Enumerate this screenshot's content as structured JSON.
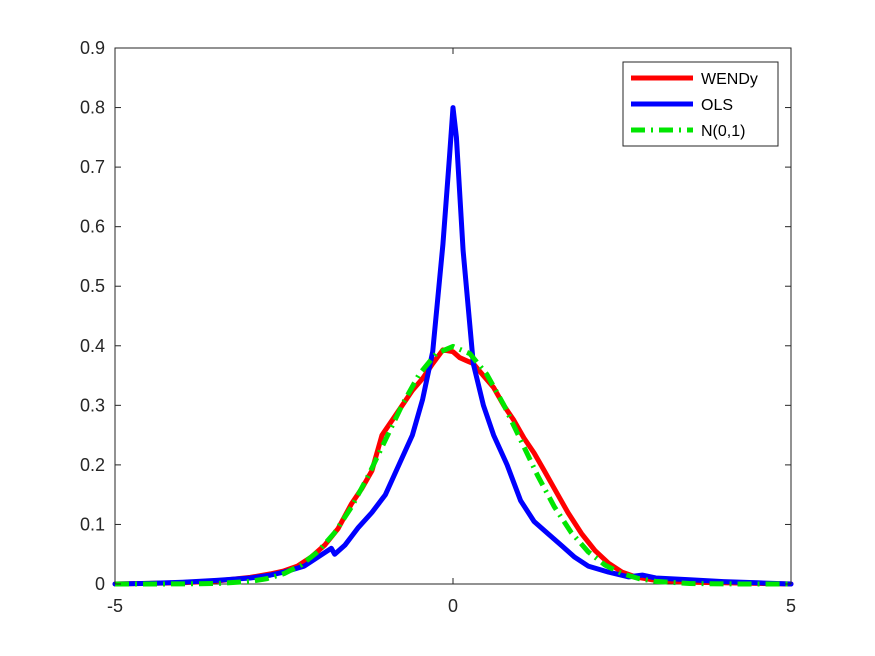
{
  "chart_data": {
    "type": "line",
    "title": "",
    "xlabel": "",
    "ylabel": "",
    "xlim": [
      -5,
      5
    ],
    "ylim": [
      0,
      0.9
    ],
    "grid": false,
    "legend_position": "top-right",
    "x_ticks": [
      -5,
      0,
      5
    ],
    "x_tick_labels": [
      "-5",
      "0",
      "5"
    ],
    "y_ticks": [
      0,
      0.1,
      0.2,
      0.3,
      0.4,
      0.5,
      0.6,
      0.7,
      0.8,
      0.9
    ],
    "y_tick_labels": [
      "0",
      "0.1",
      "0.2",
      "0.3",
      "0.4",
      "0.5",
      "0.6",
      "0.7",
      "0.8",
      "0.9"
    ],
    "series": [
      {
        "name": "WENDy",
        "color": "#ff0000",
        "style": "solid",
        "x": [
          -5.0,
          -4.5,
          -4.0,
          -3.5,
          -3.0,
          -2.7,
          -2.5,
          -2.3,
          -2.1,
          -1.9,
          -1.7,
          -1.5,
          -1.35,
          -1.2,
          -1.05,
          -0.9,
          -0.75,
          -0.6,
          -0.45,
          -0.3,
          -0.15,
          0.0,
          0.1,
          0.2,
          0.3,
          0.45,
          0.6,
          0.75,
          0.9,
          1.05,
          1.2,
          1.35,
          1.5,
          1.7,
          1.9,
          2.1,
          2.3,
          2.5,
          2.7,
          3.0,
          3.5,
          4.0,
          4.5,
          5.0
        ],
        "y": [
          0.0,
          0.001,
          0.002,
          0.005,
          0.011,
          0.017,
          0.022,
          0.03,
          0.045,
          0.065,
          0.093,
          0.135,
          0.16,
          0.19,
          0.25,
          0.275,
          0.3,
          0.325,
          0.345,
          0.37,
          0.393,
          0.39,
          0.38,
          0.375,
          0.37,
          0.35,
          0.33,
          0.3,
          0.275,
          0.245,
          0.22,
          0.19,
          0.16,
          0.12,
          0.085,
          0.056,
          0.035,
          0.02,
          0.012,
          0.006,
          0.003,
          0.002,
          0.001,
          0.0
        ]
      },
      {
        "name": "OLS",
        "color": "#0000ff",
        "style": "solid",
        "x": [
          -5.0,
          -4.5,
          -4.0,
          -3.5,
          -3.0,
          -2.7,
          -2.5,
          -2.2,
          -2.0,
          -1.8,
          -1.75,
          -1.6,
          -1.5,
          -1.4,
          -1.2,
          -1.0,
          -0.8,
          -0.6,
          -0.45,
          -0.3,
          -0.15,
          -0.05,
          0.0,
          0.05,
          0.15,
          0.3,
          0.45,
          0.6,
          0.8,
          1.0,
          1.2,
          1.4,
          1.6,
          1.8,
          2.0,
          2.3,
          2.6,
          2.8,
          3.0,
          3.5,
          4.0,
          4.5,
          5.0
        ],
        "y": [
          0.0,
          0.001,
          0.003,
          0.006,
          0.01,
          0.015,
          0.02,
          0.03,
          0.045,
          0.06,
          0.05,
          0.065,
          0.08,
          0.095,
          0.12,
          0.15,
          0.2,
          0.25,
          0.31,
          0.39,
          0.57,
          0.72,
          0.8,
          0.75,
          0.56,
          0.37,
          0.3,
          0.25,
          0.2,
          0.14,
          0.105,
          0.085,
          0.065,
          0.045,
          0.03,
          0.02,
          0.012,
          0.015,
          0.01,
          0.007,
          0.004,
          0.002,
          0.0
        ]
      },
      {
        "name": "N(0,1)",
        "color": "#00e600",
        "style": "dash-dot",
        "x": [
          -5.0,
          -4.5,
          -4.0,
          -3.5,
          -3.0,
          -2.75,
          -2.5,
          -2.25,
          -2.0,
          -1.75,
          -1.5,
          -1.25,
          -1.0,
          -0.75,
          -0.5,
          -0.25,
          0.0,
          0.25,
          0.5,
          0.75,
          1.0,
          1.25,
          1.5,
          1.75,
          2.0,
          2.25,
          2.5,
          2.75,
          3.0,
          3.5,
          4.0,
          4.5,
          5.0
        ],
        "y": [
          0.0,
          0.0,
          0.0001,
          0.0009,
          0.0044,
          0.0091,
          0.0175,
          0.0317,
          0.054,
          0.0863,
          0.1295,
          0.1826,
          0.242,
          0.3011,
          0.3521,
          0.3867,
          0.3989,
          0.3867,
          0.3521,
          0.3011,
          0.242,
          0.1826,
          0.1295,
          0.0863,
          0.054,
          0.0317,
          0.0175,
          0.0091,
          0.0044,
          0.0009,
          0.0001,
          0.0,
          0.0
        ]
      }
    ]
  }
}
